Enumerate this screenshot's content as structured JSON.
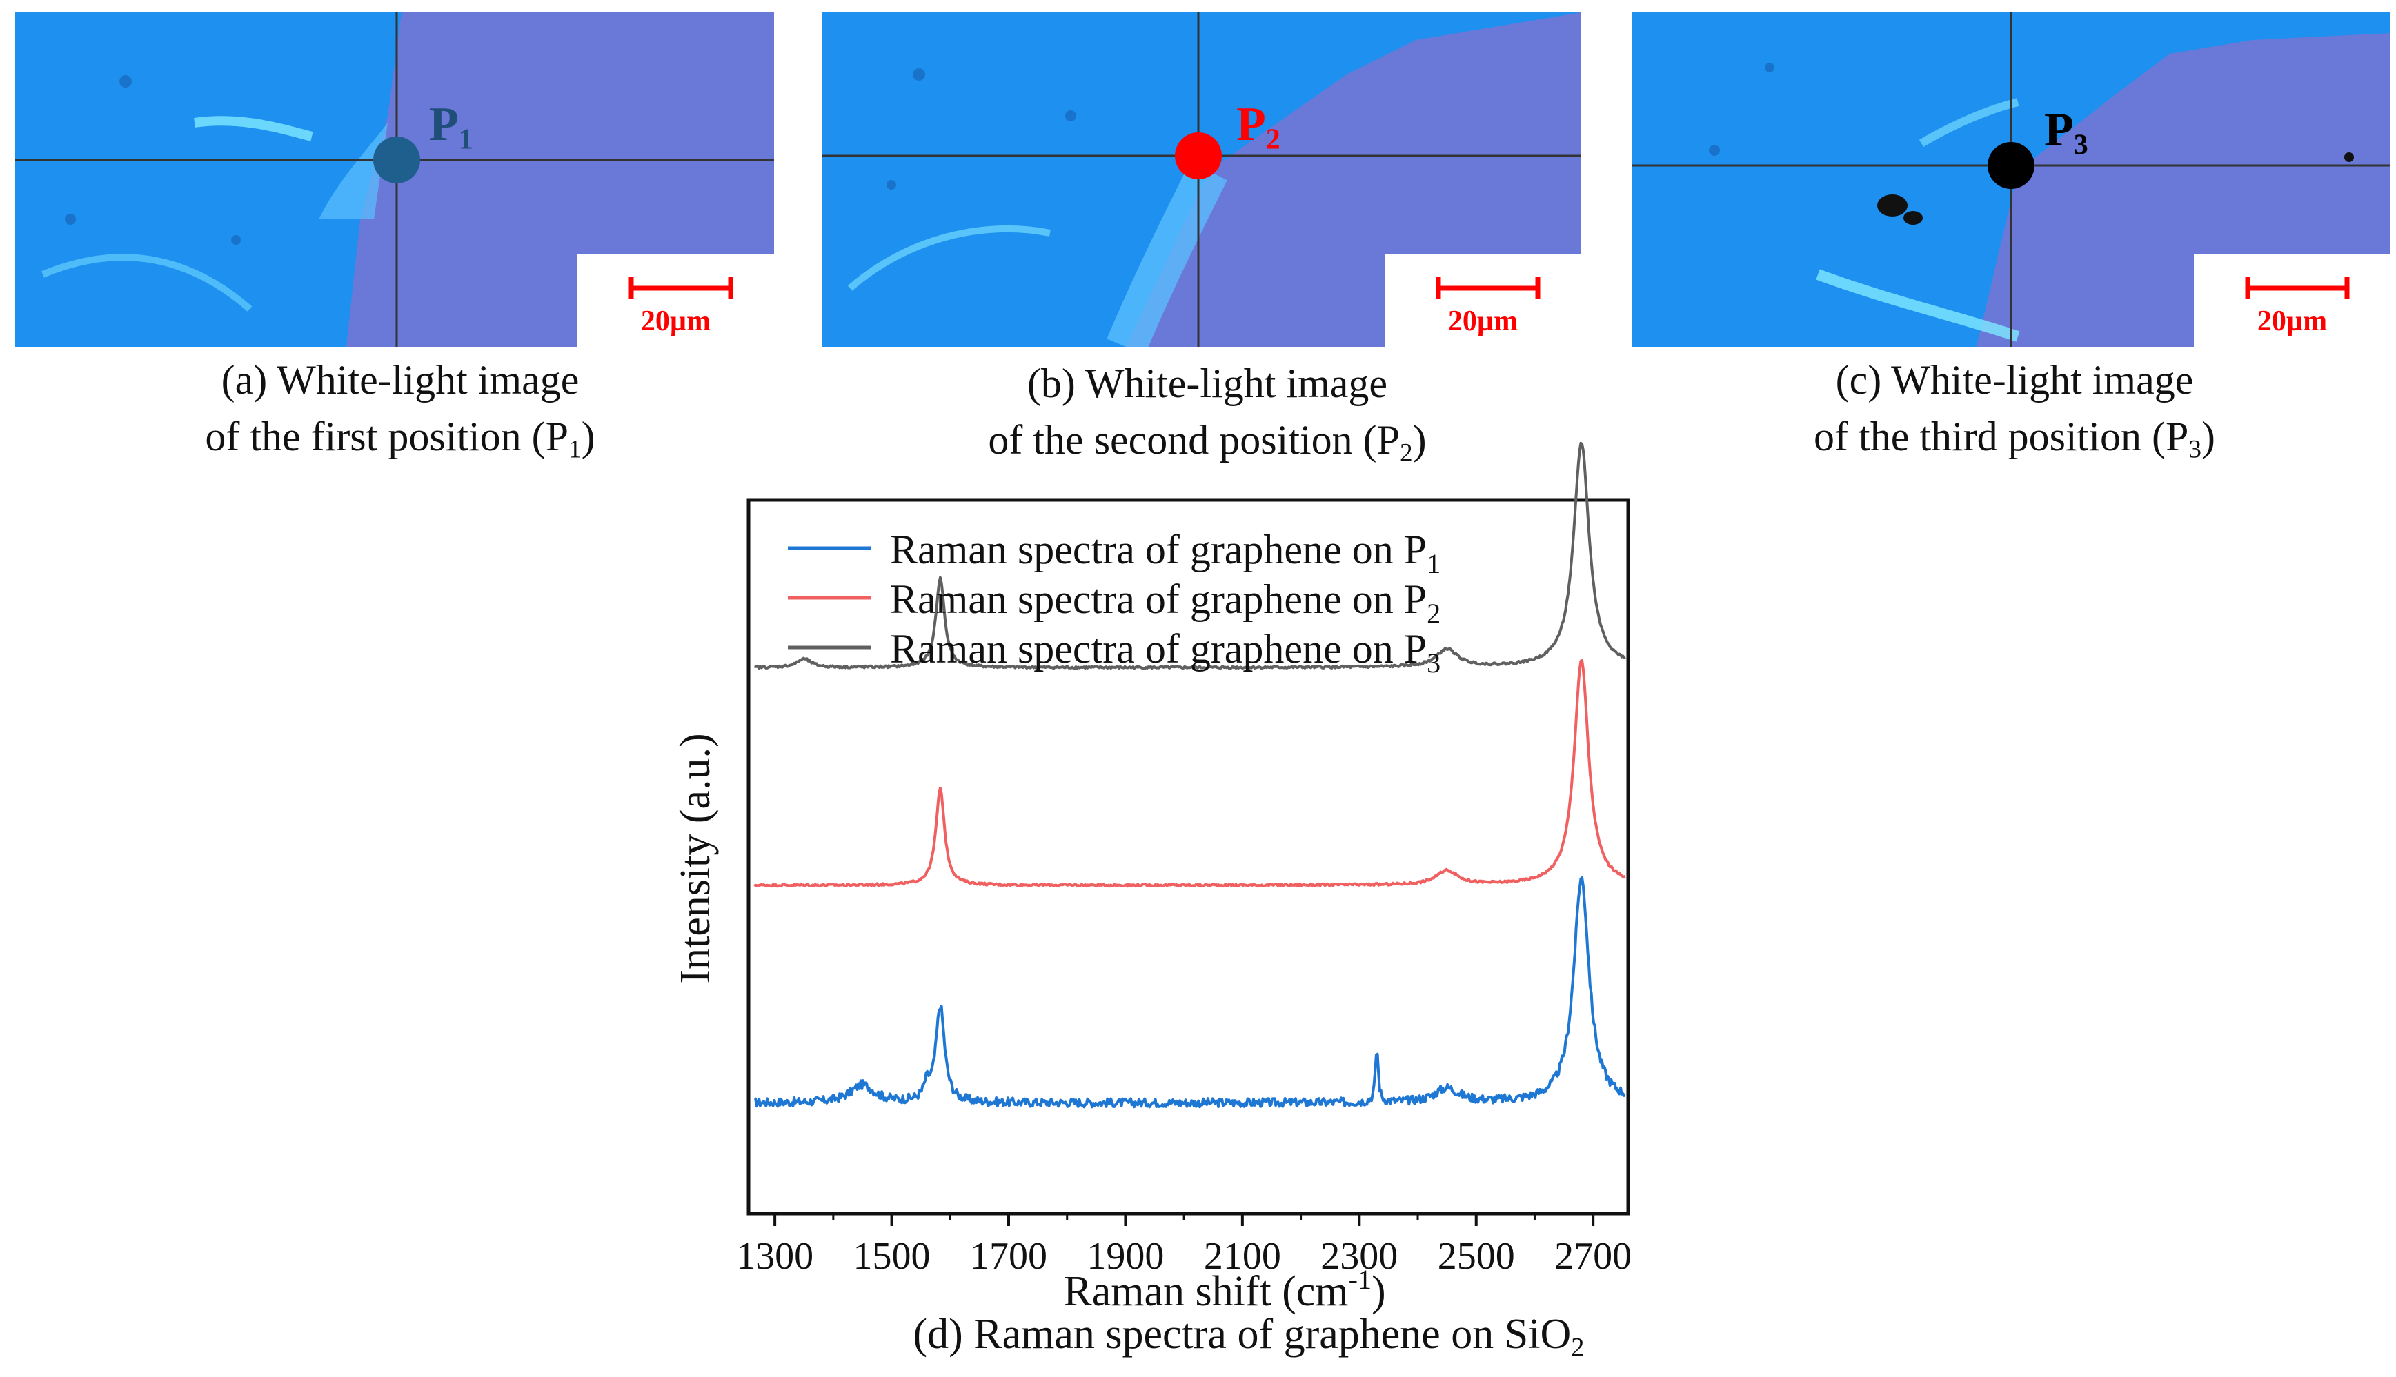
{
  "panels": [
    {
      "id": "a",
      "point_label": "P",
      "point_sub": "1",
      "point_color": "#1f5f8e",
      "label_color": "#1f4e79",
      "scale_text": "20µm",
      "caption_line1": "(a)  White-light image",
      "caption_line2_pre": "of the first position (P",
      "caption_sub": "1",
      "caption_line2_post": ")"
    },
    {
      "id": "b",
      "point_label": "P",
      "point_sub": "2",
      "point_color": "#ff0000",
      "label_color": "#ff0000",
      "scale_text": "20µm",
      "caption_line1": "(b) White-light image",
      "caption_line2_pre": "of the second position (P",
      "caption_sub": "2",
      "caption_line2_post": ")"
    },
    {
      "id": "c",
      "point_label": "P",
      "point_sub": "3",
      "point_color": "#000000",
      "label_color": "#000000",
      "scale_text": "20µm",
      "caption_line1": "(c) White-light image",
      "caption_line2_pre": "of the third position (P",
      "caption_sub": "3",
      "caption_line2_post": ")"
    }
  ],
  "colors": {
    "substrate": "#1e90f0",
    "graphene": "#6a78d8",
    "highlight": "#7ee8ff",
    "scalebar": "#ff0000"
  },
  "chart_data": {
    "type": "line",
    "title": "",
    "xlabel": "Raman shift (cm",
    "xlabel_sup": "-1",
    "xlabel_post": ")",
    "ylabel": "Intensity (a.u.)",
    "xlim": [
      1255,
      2760
    ],
    "ylim": [
      0,
      1
    ],
    "xticks": [
      1300,
      1500,
      1700,
      1900,
      2100,
      2300,
      2500,
      2700
    ],
    "series": [
      {
        "name": "Raman spectra of graphene on P",
        "sub": "1",
        "color": "#1f77d4",
        "baseline": 0.155,
        "noise": 0.006,
        "peaks": [
          {
            "x": 1450,
            "h": 0.025,
            "w": 25
          },
          {
            "x": 1560,
            "h": 0.02,
            "w": 6
          },
          {
            "x": 1583,
            "h": 0.135,
            "w": 9
          },
          {
            "x": 2330,
            "h": 0.075,
            "w": 3
          },
          {
            "x": 2450,
            "h": 0.02,
            "w": 25
          },
          {
            "x": 2680,
            "h": 0.315,
            "w": 16
          }
        ]
      },
      {
        "name": "Raman spectra of graphene on P",
        "sub": "2",
        "color": "#f06060",
        "baseline": 0.46,
        "noise": 0.0015,
        "peaks": [
          {
            "x": 1583,
            "h": 0.135,
            "w": 9
          },
          {
            "x": 2450,
            "h": 0.02,
            "w": 22
          },
          {
            "x": 2680,
            "h": 0.315,
            "w": 15
          }
        ]
      },
      {
        "name": "Raman spectra of graphene on P",
        "sub": "3",
        "color": "#606060",
        "baseline": 0.765,
        "noise": 0.0015,
        "peaks": [
          {
            "x": 1350,
            "h": 0.012,
            "w": 15
          },
          {
            "x": 1583,
            "h": 0.125,
            "w": 9
          },
          {
            "x": 2450,
            "h": 0.025,
            "w": 22
          },
          {
            "x": 2680,
            "h": 0.315,
            "w": 16
          }
        ]
      }
    ]
  },
  "bottom_caption": {
    "pre": "(d) Raman spectra of graphene on SiO",
    "sub": "2"
  }
}
